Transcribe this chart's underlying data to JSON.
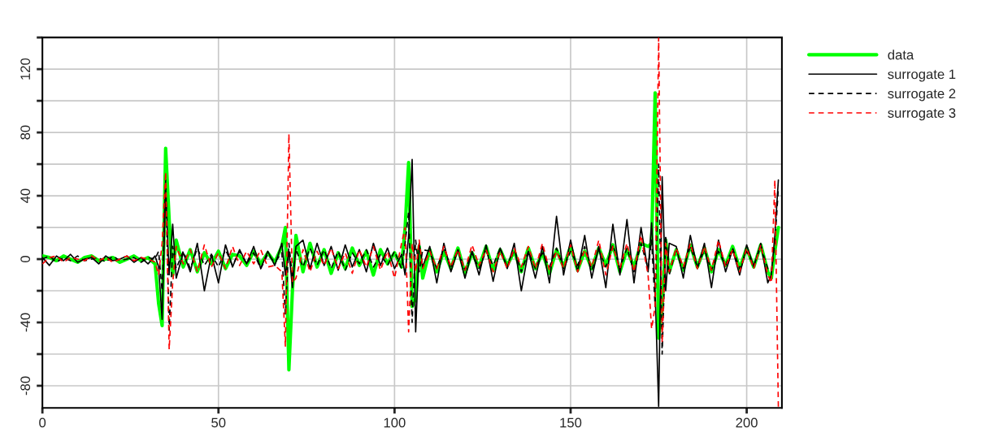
{
  "chart_data": {
    "type": "line",
    "x": [
      0,
      2,
      4,
      6,
      8,
      10,
      12,
      14,
      16,
      18,
      20,
      22,
      24,
      26,
      28,
      30,
      32,
      33,
      34,
      35,
      36,
      37,
      38,
      40,
      42,
      44,
      46,
      48,
      50,
      52,
      54,
      56,
      58,
      60,
      62,
      64,
      66,
      68,
      69,
      70,
      71,
      72,
      74,
      76,
      78,
      80,
      82,
      84,
      86,
      88,
      90,
      92,
      94,
      96,
      98,
      100,
      102,
      103,
      104,
      105,
      106,
      107,
      108,
      110,
      112,
      114,
      116,
      118,
      120,
      122,
      124,
      126,
      128,
      130,
      132,
      134,
      136,
      138,
      140,
      142,
      144,
      146,
      148,
      150,
      152,
      154,
      156,
      158,
      160,
      162,
      164,
      166,
      168,
      170,
      172,
      173,
      174,
      175,
      176,
      177,
      178,
      180,
      182,
      184,
      186,
      188,
      190,
      192,
      194,
      196,
      198,
      200,
      202,
      204,
      206,
      207,
      208,
      209
    ],
    "series": [
      {
        "name": "data",
        "color": "#00ff00",
        "line_style": "solid",
        "values": [
          2,
          1,
          -1,
          2,
          0,
          -2,
          1,
          2,
          -1,
          0,
          1,
          -2,
          0,
          2,
          -1,
          1,
          -3,
          -28,
          -42,
          70,
          25,
          -10,
          12,
          -5,
          6,
          -8,
          4,
          -3,
          5,
          -6,
          3,
          2,
          -4,
          5,
          -3,
          4,
          -2,
          8,
          20,
          -70,
          -20,
          15,
          -8,
          10,
          -5,
          6,
          -9,
          4,
          -6,
          7,
          -4,
          5,
          -10,
          6,
          -3,
          4,
          -5,
          20,
          61,
          -30,
          -25,
          8,
          -12,
          6,
          -8,
          5,
          -6,
          7,
          -9,
          4,
          -5,
          8,
          -7,
          6,
          -4,
          5,
          -8,
          7,
          -6,
          4,
          -9,
          6,
          -5,
          8,
          -7,
          5,
          -6,
          7,
          -4,
          9,
          -8,
          6,
          -5,
          10,
          8,
          10,
          105,
          -50,
          -30,
          12,
          -8,
          6,
          -7,
          9,
          -5,
          7,
          -8,
          6,
          -4,
          8,
          -6,
          7,
          -5,
          9,
          -8,
          -12,
          5,
          20
        ]
      },
      {
        "name": "surrogate 1",
        "color": "#000000",
        "line_style": "solid",
        "values": [
          1,
          -4,
          2,
          -1,
          3,
          -2,
          0,
          1,
          -3,
          2,
          -1,
          0,
          2,
          -2,
          1,
          -3,
          2,
          -5,
          -38,
          45,
          -10,
          22,
          -12,
          4,
          -8,
          10,
          -20,
          3,
          -15,
          9,
          -5,
          6,
          -3,
          8,
          -6,
          5,
          -4,
          10,
          -10,
          5,
          -18,
          8,
          12,
          -6,
          10,
          -4,
          8,
          -7,
          9,
          -5,
          6,
          -8,
          10,
          -4,
          7,
          -6,
          3,
          -10,
          15,
          63,
          -46,
          10,
          -5,
          8,
          -15,
          10,
          -8,
          6,
          -12,
          5,
          -10,
          9,
          -14,
          7,
          -6,
          10,
          -20,
          5,
          -12,
          8,
          -15,
          27,
          -10,
          12,
          -8,
          15,
          -12,
          8,
          -18,
          22,
          -10,
          25,
          -15,
          20,
          -8,
          23,
          -20,
          -93,
          52,
          -20,
          10,
          8,
          -12,
          15,
          -6,
          10,
          -18,
          12,
          -8,
          6,
          -10,
          9,
          -5,
          10,
          -15,
          -10,
          15,
          50
        ]
      },
      {
        "name": "surrogate 2",
        "color": "#000000",
        "line_style": "dashed",
        "values": [
          0,
          2,
          -2,
          1,
          -1,
          2,
          -1,
          0,
          1,
          -2,
          2,
          -1,
          0,
          1,
          -2,
          1,
          0,
          5,
          -20,
          50,
          -45,
          8,
          -6,
          5,
          -6,
          7,
          -4,
          3,
          -5,
          6,
          -4,
          5,
          -3,
          4,
          -6,
          3,
          -2,
          4,
          -35,
          10,
          -12,
          6,
          -5,
          7,
          -4,
          6,
          -6,
          5,
          -7,
          4,
          -3,
          6,
          -5,
          3,
          -4,
          5,
          -6,
          10,
          30,
          -40,
          12,
          -8,
          6,
          5,
          -6,
          7,
          -5,
          6,
          -7,
          4,
          -6,
          5,
          -4,
          7,
          -5,
          6,
          -8,
          5,
          -6,
          4,
          -5,
          7,
          -6,
          5,
          -4,
          8,
          -7,
          6,
          -5,
          9,
          -6,
          7,
          -8,
          10,
          -6,
          12,
          -30,
          60,
          -60,
          15,
          -10,
          7,
          -6,
          8,
          -5,
          6,
          -7,
          5,
          -4,
          7,
          -6,
          5,
          -4,
          8,
          -6,
          -8,
          10,
          45
        ]
      },
      {
        "name": "surrogate 3",
        "color": "#ff0000",
        "line_style": "dashed",
        "values": [
          -3,
          1,
          2,
          -2,
          1,
          0,
          -1,
          2,
          -1,
          1,
          -2,
          0,
          2,
          -1,
          1,
          0,
          -2,
          -10,
          10,
          55,
          -57,
          -15,
          8,
          -3,
          6,
          -8,
          9,
          -5,
          4,
          -6,
          8,
          -4,
          5,
          -3,
          6,
          -5,
          -4,
          -8,
          -55,
          79,
          -15,
          -12,
          6,
          -8,
          5,
          -4,
          7,
          -6,
          4,
          -9,
          6,
          -5,
          8,
          -7,
          5,
          -12,
          10,
          20,
          -46,
          10,
          -8,
          12,
          -6,
          5,
          -6,
          8,
          -5,
          6,
          -7,
          9,
          -4,
          6,
          -8,
          5,
          -6,
          7,
          -5,
          8,
          -6,
          10,
          -7,
          5,
          -6,
          9,
          -8,
          6,
          -5,
          12,
          -10,
          8,
          -6,
          10,
          -8,
          15,
          -10,
          -44,
          -30,
          140,
          -53,
          10,
          -8,
          7,
          -5,
          10,
          -6,
          8,
          -7,
          12,
          -5,
          6,
          -8,
          7,
          -6,
          9,
          -10,
          -15,
          50,
          -94
        ]
      }
    ],
    "xlim": [
      0,
      210
    ],
    "xticks": [
      0,
      50,
      100,
      150,
      200
    ],
    "ylim": [
      -94,
      140
    ],
    "yticks": [
      -80,
      {
        "value": -60,
        "label": null
      },
      -40,
      {
        "value": -20,
        "label": null
      },
      0,
      {
        "value": 20,
        "label": null
      },
      40,
      {
        "value": 60,
        "label": null
      },
      80,
      {
        "value": 100,
        "label": null
      },
      120,
      {
        "value": 140,
        "label": null
      }
    ],
    "grid": true,
    "legend": "top right"
  }
}
